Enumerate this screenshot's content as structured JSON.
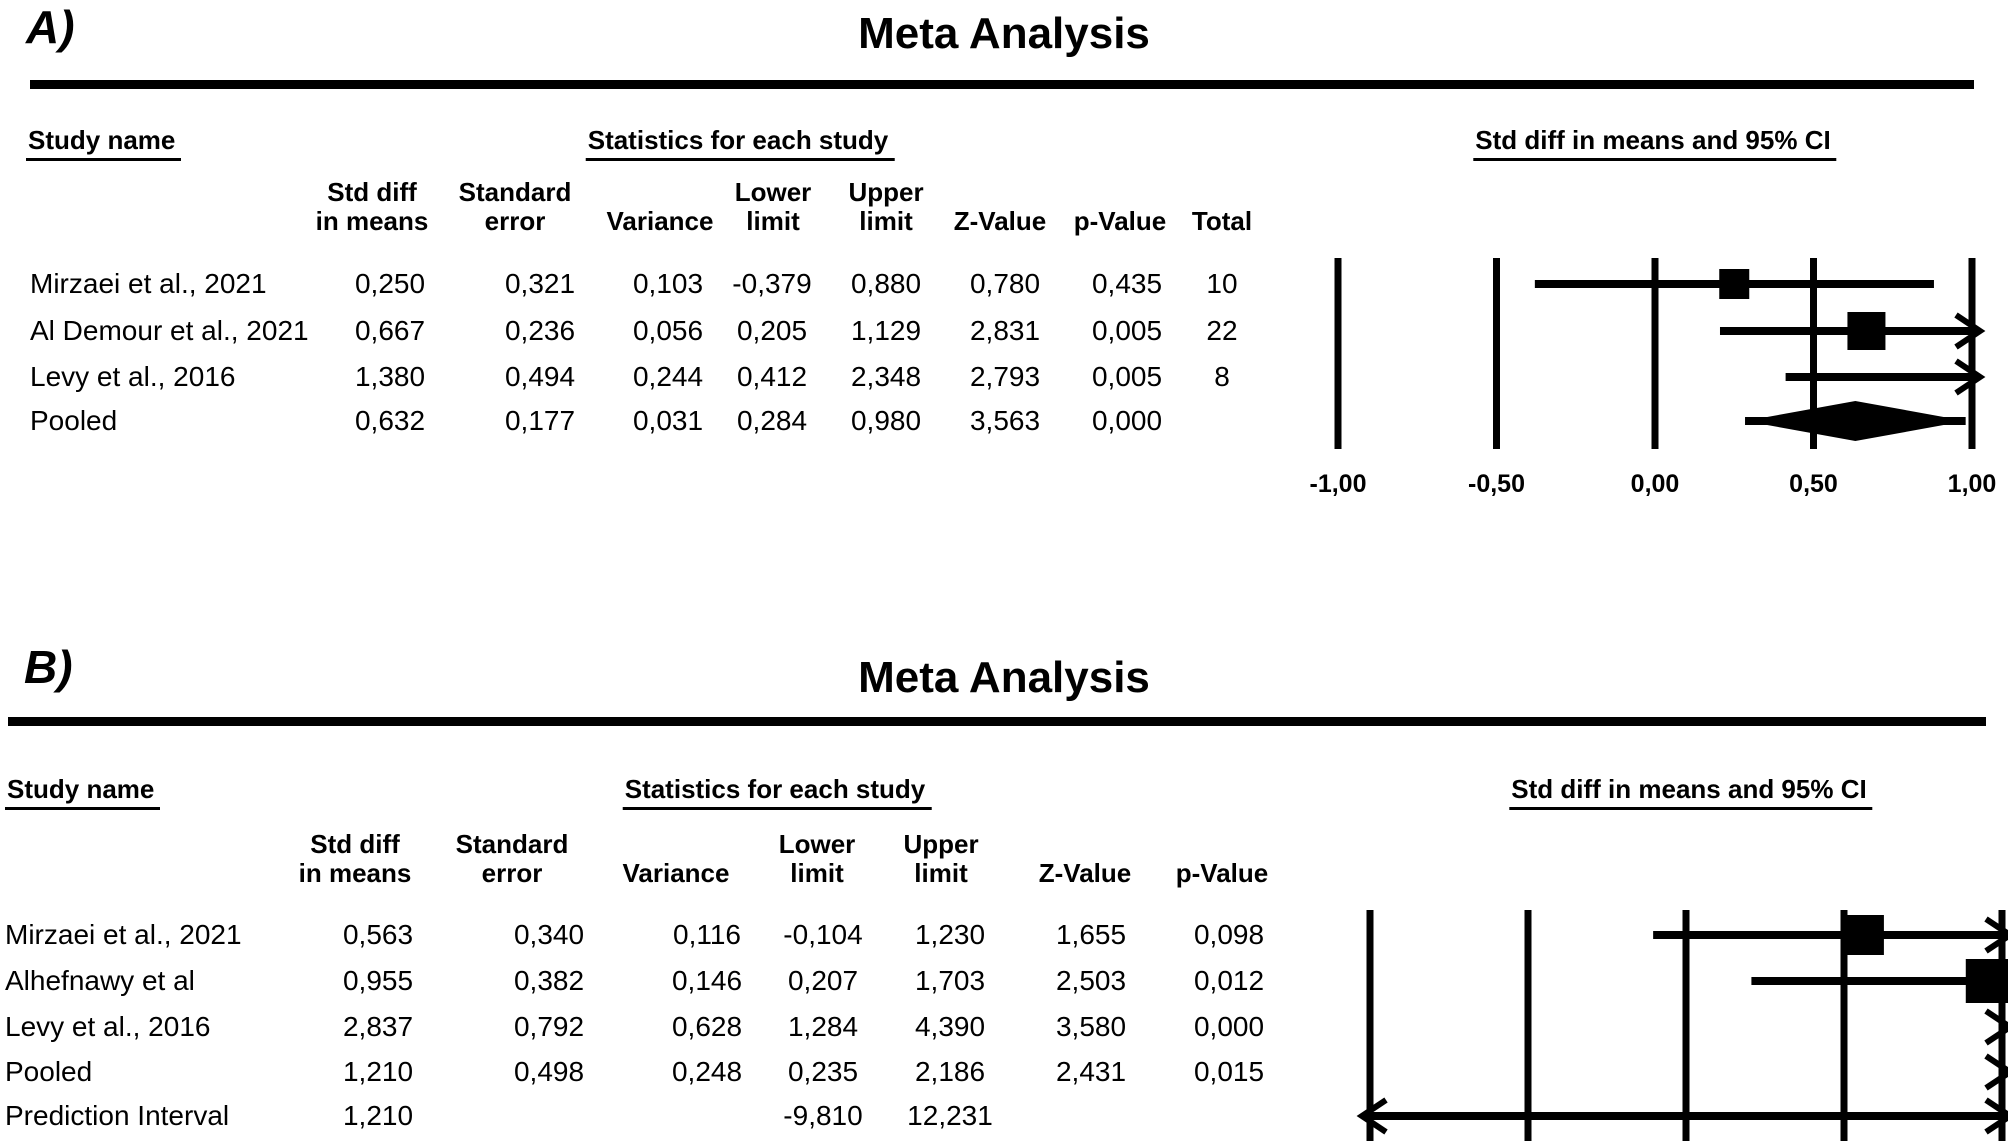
{
  "figure": {
    "background": "#ffffff",
    "ink": "#000000"
  },
  "panelA": {
    "label": "A)",
    "title": "Meta Analysis",
    "section_headers": {
      "study": "Study name",
      "stats": "Statistics for each study",
      "plot": "Std diff in means and 95% CI"
    },
    "columns": [
      [
        "Std diff",
        "in means"
      ],
      [
        "Standard",
        "error"
      ],
      [
        "",
        "Variance"
      ],
      [
        "Lower",
        "limit"
      ],
      [
        "Upper",
        "limit"
      ],
      [
        "",
        "Z-Value"
      ],
      [
        "",
        "p-Value"
      ],
      [
        "",
        "Total"
      ]
    ],
    "rows": [
      {
        "name": "Mirzaei et al., 2021",
        "values": [
          "0,250",
          "0,321",
          "0,103",
          "-0,379",
          "0,880",
          "0,780",
          "0,435",
          "10"
        ]
      },
      {
        "name": "Al Demour et al., 2021",
        "values": [
          "0,667",
          "0,236",
          "0,056",
          "0,205",
          "1,129",
          "2,831",
          "0,005",
          "22"
        ]
      },
      {
        "name": "Levy et al., 2016",
        "values": [
          "1,380",
          "0,494",
          "0,244",
          "0,412",
          "2,348",
          "2,793",
          "0,005",
          "8"
        ]
      },
      {
        "name": "Pooled",
        "values": [
          "0,632",
          "0,177",
          "0,031",
          "0,284",
          "0,980",
          "3,563",
          "0,000",
          ""
        ]
      }
    ],
    "axis_labels": [
      "-1,00",
      "-0,50",
      "0,00",
      "0,50",
      "1,00"
    ]
  },
  "panelB": {
    "label": "B)",
    "title": "Meta Analysis",
    "section_headers": {
      "study": "Study name",
      "stats": "Statistics for each study",
      "plot": "Std diff in means and 95% CI"
    },
    "columns": [
      [
        "Std diff",
        "in means"
      ],
      [
        "Standard",
        "error"
      ],
      [
        "",
        "Variance"
      ],
      [
        "Lower",
        "limit"
      ],
      [
        "Upper",
        "limit"
      ],
      [
        "",
        "Z-Value"
      ],
      [
        "",
        "p-Value"
      ]
    ],
    "rows": [
      {
        "name": "Mirzaei et al., 2021",
        "values": [
          "0,563",
          "0,340",
          "0,116",
          "-0,104",
          "1,230",
          "1,655",
          "0,098"
        ]
      },
      {
        "name": "Alhefnawy et al",
        "values": [
          "0,955",
          "0,382",
          "0,146",
          "0,207",
          "1,703",
          "2,503",
          "0,012"
        ]
      },
      {
        "name": "Levy et al., 2016",
        "values": [
          "2,837",
          "0,792",
          "0,628",
          "1,284",
          "4,390",
          "3,580",
          "0,000"
        ]
      },
      {
        "name": "Pooled",
        "values": [
          "1,210",
          "0,498",
          "0,248",
          "0,235",
          "2,186",
          "2,431",
          "0,015"
        ]
      },
      {
        "name": "Prediction Interval",
        "values": [
          "1,210",
          "",
          "",
          "-9,810",
          "12,231",
          "",
          ""
        ]
      }
    ],
    "axis_labels": []
  },
  "chart_data": [
    {
      "type": "forest",
      "panel": "A",
      "title": "Meta Analysis",
      "effect_label": "Std diff in means and 95% CI",
      "axis": {
        "min": -1.0,
        "max": 1.0,
        "ticks": [
          -1.0,
          -0.5,
          0.0,
          0.5,
          1.0
        ],
        "tick_labels": [
          "-1,00",
          "-0,50",
          "0,00",
          "0,50",
          "1,00"
        ]
      },
      "studies": [
        {
          "name": "Mirzaei et al., 2021",
          "std_diff": 0.25,
          "se": 0.321,
          "variance": 0.103,
          "lower": -0.379,
          "upper": 0.88,
          "z": 0.78,
          "p": 0.435,
          "total": 10,
          "marker": "square"
        },
        {
          "name": "Al Demour et al., 2021",
          "std_diff": 0.667,
          "se": 0.236,
          "variance": 0.056,
          "lower": 0.205,
          "upper": 1.129,
          "z": 2.831,
          "p": 0.005,
          "total": 22,
          "marker": "square"
        },
        {
          "name": "Levy et al., 2016",
          "std_diff": 1.38,
          "se": 0.494,
          "variance": 0.244,
          "lower": 0.412,
          "upper": 2.348,
          "z": 2.793,
          "p": 0.005,
          "total": 8,
          "marker": "square"
        },
        {
          "name": "Pooled",
          "std_diff": 0.632,
          "se": 0.177,
          "variance": 0.031,
          "lower": 0.284,
          "upper": 0.98,
          "z": 3.563,
          "p": 0.0,
          "total": null,
          "marker": "diamond"
        }
      ]
    },
    {
      "type": "forest",
      "panel": "B",
      "title": "Meta Analysis",
      "effect_label": "Std diff in means and 95% CI",
      "axis": {
        "min": -1.0,
        "max": 1.0,
        "ticks": [
          -1.0,
          -0.5,
          0.0,
          0.5,
          1.0
        ],
        "tick_labels": []
      },
      "studies": [
        {
          "name": "Mirzaei et al., 2021",
          "std_diff": 0.563,
          "se": 0.34,
          "variance": 0.116,
          "lower": -0.104,
          "upper": 1.23,
          "z": 1.655,
          "p": 0.098,
          "marker": "square"
        },
        {
          "name": "Alhefnawy et al",
          "std_diff": 0.955,
          "se": 0.382,
          "variance": 0.146,
          "lower": 0.207,
          "upper": 1.703,
          "z": 2.503,
          "p": 0.012,
          "marker": "square"
        },
        {
          "name": "Levy et al., 2016",
          "std_diff": 2.837,
          "se": 0.792,
          "variance": 0.628,
          "lower": 1.284,
          "upper": 4.39,
          "z": 3.58,
          "p": 0.0,
          "marker": "square"
        },
        {
          "name": "Pooled",
          "std_diff": 1.21,
          "se": 0.498,
          "variance": 0.248,
          "lower": 0.235,
          "upper": 2.186,
          "z": 2.431,
          "p": 0.015,
          "marker": "diamond"
        },
        {
          "name": "Prediction Interval",
          "std_diff": 1.21,
          "se": null,
          "variance": null,
          "lower": -9.81,
          "upper": 12.231,
          "z": null,
          "p": null,
          "marker": "interval"
        }
      ]
    }
  ]
}
